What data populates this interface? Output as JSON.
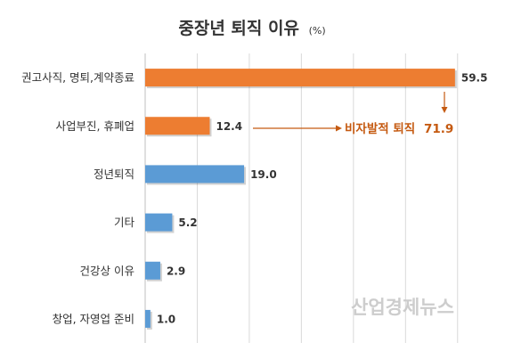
{
  "chart_data": {
    "type": "bar",
    "orientation": "horizontal",
    "title": "중장년 퇴직 이유",
    "unit": "(%)",
    "categories": [
      "권고사직, 명퇴,계약종료",
      "사업부진, 휴폐업",
      "정년퇴직",
      "기타",
      "건강상 이유",
      "창업, 자영업 준비"
    ],
    "values": [
      59.5,
      12.4,
      19.0,
      5.2,
      2.9,
      1.0
    ],
    "value_labels": [
      "59.5",
      "12.4",
      "19.0",
      "5.2",
      "2.9",
      "1.0"
    ],
    "bar_colors": [
      "#ed7d31",
      "#ed7d31",
      "#5b9bd5",
      "#5b9bd5",
      "#5b9bd5",
      "#5b9bd5"
    ],
    "xlim": [
      0,
      65
    ],
    "grid": true,
    "annotation": {
      "label": "비자발적 퇴직",
      "value": "71.9",
      "color": "#c55a11"
    }
  },
  "watermark": "산업경제뉴스"
}
